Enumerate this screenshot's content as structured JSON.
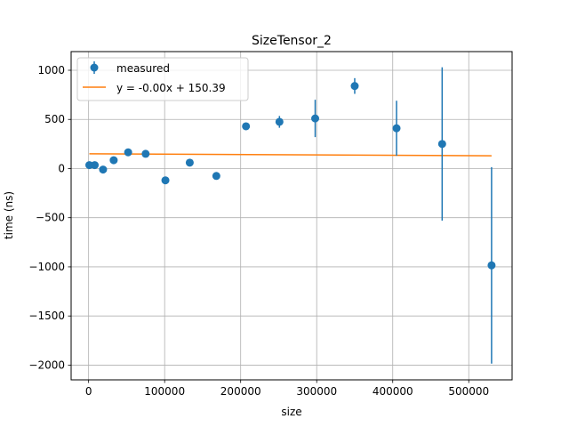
{
  "chart_data": {
    "type": "scatter",
    "title": "SizeTensor_2",
    "xlabel": "size",
    "ylabel": "time (ns)",
    "xlim": [
      -23000,
      557000
    ],
    "ylim": [
      -2150,
      1190
    ],
    "xticks": [
      0,
      100000,
      200000,
      300000,
      400000,
      500000
    ],
    "xtick_labels": [
      "0",
      "100000",
      "200000",
      "300000",
      "400000",
      "500000"
    ],
    "yticks": [
      -2000,
      -1500,
      -1000,
      -500,
      0,
      500,
      1000
    ],
    "ytick_labels": [
      "−2000",
      "−1500",
      "−1000",
      "−500",
      "0",
      "500",
      "1000"
    ],
    "grid": true,
    "legend_position": "top-left",
    "series": [
      {
        "name": "measured",
        "kind": "errorbar-points",
        "color": "#1f77b4",
        "points": [
          {
            "x": 1000,
            "y": 35,
            "err": 0
          },
          {
            "x": 8000,
            "y": 35,
            "err": 0
          },
          {
            "x": 19000,
            "y": -10,
            "err": 0
          },
          {
            "x": 33000,
            "y": 85,
            "err": 0
          },
          {
            "x": 52000,
            "y": 165,
            "err": 0
          },
          {
            "x": 75000,
            "y": 150,
            "err": 0
          },
          {
            "x": 101000,
            "y": -120,
            "err": 0
          },
          {
            "x": 133000,
            "y": 60,
            "err": 0
          },
          {
            "x": 168000,
            "y": -75,
            "err": 0
          },
          {
            "x": 207000,
            "y": 430,
            "err": 0
          },
          {
            "x": 251000,
            "y": 475,
            "err": 60
          },
          {
            "x": 298000,
            "y": 510,
            "err": 190
          },
          {
            "x": 350000,
            "y": 840,
            "err": 80
          },
          {
            "x": 405000,
            "y": 410,
            "err": 280
          },
          {
            "x": 465000,
            "y": 250,
            "err": 780
          },
          {
            "x": 530000,
            "y": -985,
            "err": 1000
          }
        ]
      },
      {
        "name": "y = -0.00x + 150.39",
        "kind": "line",
        "color": "#ff7f0e",
        "x": [
          1000,
          530000
        ],
        "y": [
          150.39,
          130
        ]
      }
    ]
  }
}
